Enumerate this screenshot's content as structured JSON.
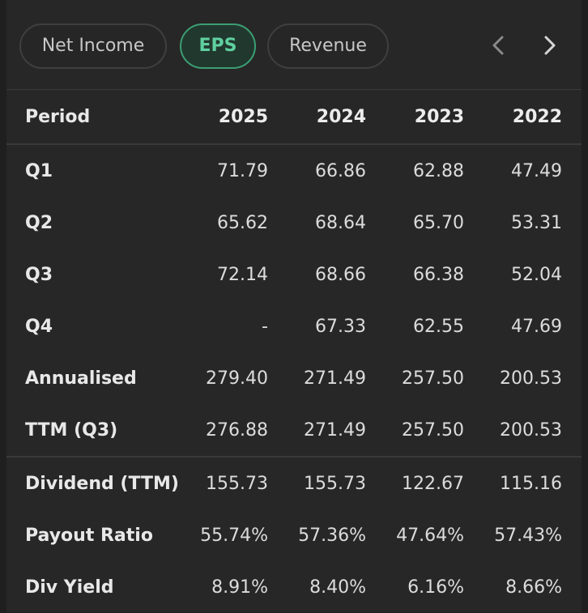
{
  "tabs": [
    {
      "label": "Net Income",
      "active": false
    },
    {
      "label": "EPS",
      "active": true
    },
    {
      "label": "Revenue",
      "active": false
    }
  ],
  "colors": {
    "accent": "#5fd0a0",
    "accent_border": "#3c9e73",
    "background": "#272727"
  },
  "nav": {
    "prev_icon": "chevron-left-icon",
    "next_icon": "chevron-right-icon"
  },
  "table": {
    "header": {
      "label": "Period",
      "years": [
        "2025",
        "2024",
        "2023",
        "2022"
      ]
    },
    "rows": [
      {
        "label": "Q1",
        "values": [
          "71.79",
          "66.86",
          "62.88",
          "47.49"
        ]
      },
      {
        "label": "Q2",
        "values": [
          "65.62",
          "68.64",
          "65.70",
          "53.31"
        ]
      },
      {
        "label": "Q3",
        "values": [
          "72.14",
          "68.66",
          "66.38",
          "52.04"
        ]
      },
      {
        "label": "Q4",
        "values": [
          "-",
          "67.33",
          "62.55",
          "47.69"
        ]
      },
      {
        "label": "Annualised",
        "values": [
          "279.40",
          "271.49",
          "257.50",
          "200.53"
        ]
      },
      {
        "label": "TTM (Q3)",
        "values": [
          "276.88",
          "271.49",
          "257.50",
          "200.53"
        ]
      },
      {
        "label": "Dividend (TTM)",
        "values": [
          "155.73",
          "155.73",
          "122.67",
          "115.16"
        ]
      },
      {
        "label": "Payout Ratio",
        "values": [
          "55.74%",
          "57.36%",
          "47.64%",
          "57.43%"
        ]
      },
      {
        "label": "Div Yield",
        "values": [
          "8.91%",
          "8.40%",
          "6.16%",
          "8.66%"
        ]
      }
    ]
  }
}
